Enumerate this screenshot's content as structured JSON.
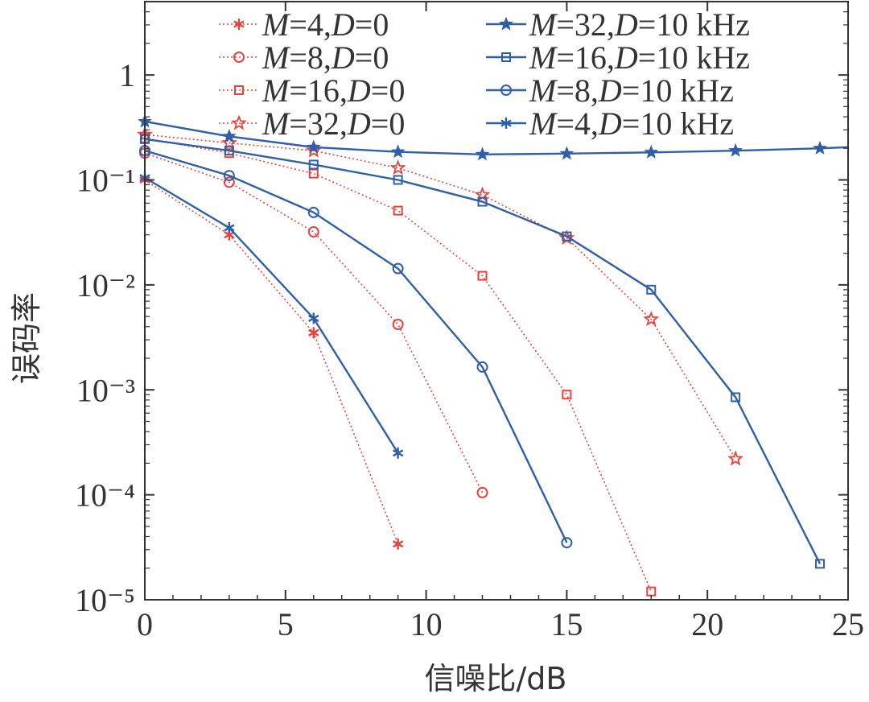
{
  "chart_data": {
    "type": "line",
    "title": "",
    "xlabel": "信噪比/dB",
    "ylabel": "误码率",
    "xlim": [
      0,
      25
    ],
    "ylim": [
      1e-05,
      5
    ],
    "yscale": "log",
    "xticks": [
      0,
      5,
      10,
      15,
      20,
      25
    ],
    "yticks": [
      {
        "value": 1,
        "label": "1"
      },
      {
        "value": 0.1,
        "label": "10⁻¹"
      },
      {
        "value": 0.01,
        "label": "10⁻²"
      },
      {
        "value": 0.001,
        "label": "10⁻³"
      },
      {
        "value": 0.0001,
        "label": "10⁻⁴"
      },
      {
        "value": 1e-05,
        "label": "10⁻⁵"
      }
    ],
    "grid": false,
    "legend_position": "top-right",
    "colors": {
      "red": "#e8423c",
      "blue": "#2f5fa8"
    },
    "series": [
      {
        "name": "M=4,D=0",
        "color": "#e8423c",
        "style": "dotted",
        "marker": "asterisk",
        "x": [
          0,
          3,
          6,
          9
        ],
        "y": [
          0.1,
          0.03,
          0.0035,
          3.4e-05
        ]
      },
      {
        "name": "M=8,D=0",
        "color": "#e8423c",
        "style": "dotted",
        "marker": "circle",
        "x": [
          0,
          3,
          6,
          9,
          12
        ],
        "y": [
          0.18,
          0.095,
          0.032,
          0.0042,
          0.000105
        ]
      },
      {
        "name": "M=16,D=0",
        "color": "#e8423c",
        "style": "dotted",
        "marker": "square",
        "x": [
          0,
          3,
          6,
          9,
          12,
          15,
          18
        ],
        "y": [
          0.25,
          0.18,
          0.115,
          0.051,
          0.0122,
          0.0009,
          1.2e-05
        ]
      },
      {
        "name": "M=32,D=0",
        "color": "#e8423c",
        "style": "dotted",
        "marker": "star",
        "x": [
          0,
          3,
          6,
          9,
          12,
          15,
          18,
          21
        ],
        "y": [
          0.27,
          0.225,
          0.19,
          0.13,
          0.072,
          0.028,
          0.0047,
          0.00022
        ]
      },
      {
        "name": "M=32,D=10 kHz",
        "color": "#2f5fa8",
        "style": "solid",
        "marker": "star",
        "x": [
          0,
          3,
          6,
          9,
          12,
          15,
          18,
          21,
          24,
          25
        ],
        "y": [
          0.36,
          0.26,
          0.205,
          0.185,
          0.175,
          0.178,
          0.183,
          0.19,
          0.2,
          0.205
        ]
      },
      {
        "name": "M=16,D=10 kHz",
        "color": "#2f5fa8",
        "style": "solid",
        "marker": "square",
        "x": [
          0,
          3,
          6,
          9,
          12,
          15,
          18,
          21,
          24
        ],
        "y": [
          0.245,
          0.19,
          0.14,
          0.1,
          0.062,
          0.029,
          0.009,
          0.00085,
          2.2e-05
        ]
      },
      {
        "name": "M=8,D=10 kHz",
        "color": "#2f5fa8",
        "style": "solid",
        "marker": "circle",
        "x": [
          0,
          3,
          6,
          9,
          12,
          15
        ],
        "y": [
          0.19,
          0.11,
          0.049,
          0.0143,
          0.00165,
          3.5e-05
        ]
      },
      {
        "name": "M=4,D=10 kHz",
        "color": "#2f5fa8",
        "style": "solid",
        "marker": "asterisk",
        "x": [
          0,
          3,
          6,
          9
        ],
        "y": [
          0.105,
          0.035,
          0.0048,
          0.00025
        ]
      }
    ],
    "legend": [
      {
        "series": 0,
        "label_prefix": "M",
        "label_rest": "=4,",
        "label_d": "D",
        "label_tail": "=0"
      },
      {
        "series": 1,
        "label_prefix": "M",
        "label_rest": "=8,",
        "label_d": "D",
        "label_tail": "=0"
      },
      {
        "series": 2,
        "label_prefix": "M",
        "label_rest": "=16,",
        "label_d": "D",
        "label_tail": "=0"
      },
      {
        "series": 3,
        "label_prefix": "M",
        "label_rest": "=32,",
        "label_d": "D",
        "label_tail": "=0"
      },
      {
        "series": 4,
        "label_prefix": "M",
        "label_rest": "=32,",
        "label_d": "D",
        "label_tail": "=10 kHz"
      },
      {
        "series": 5,
        "label_prefix": "M",
        "label_rest": "=16,",
        "label_d": "D",
        "label_tail": "=10 kHz"
      },
      {
        "series": 6,
        "label_prefix": "M",
        "label_rest": "=8,",
        "label_d": "D",
        "label_tail": "=10 kHz"
      },
      {
        "series": 7,
        "label_prefix": "M",
        "label_rest": "=4,",
        "label_d": "D",
        "label_tail": "=10 kHz"
      }
    ]
  }
}
